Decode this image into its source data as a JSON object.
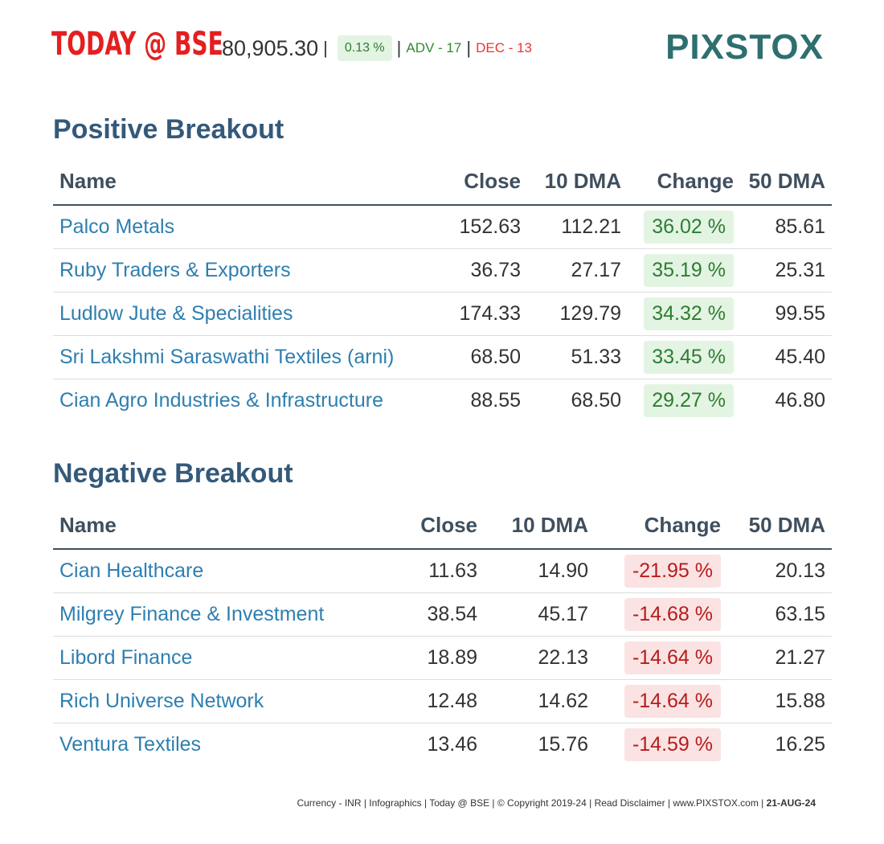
{
  "header": {
    "brand": "TODAY @ BSE",
    "index_value": "80,905.30",
    "change_pct": "0.13 %",
    "adv": "ADV - 17",
    "dec": "DEC - 13",
    "logo": "PIXSTOX"
  },
  "positive": {
    "title": "Positive Breakout",
    "columns": [
      "Name",
      "Close",
      "10 DMA",
      "Change",
      "50 DMA"
    ],
    "rows": [
      {
        "name": "Palco Metals",
        "close": "152.63",
        "dma10": "112.21",
        "change": "36.02 %",
        "dma50": "85.61"
      },
      {
        "name": "Ruby Traders & Exporters",
        "close": "36.73",
        "dma10": "27.17",
        "change": "35.19 %",
        "dma50": "25.31"
      },
      {
        "name": "Ludlow Jute & Specialities",
        "close": "174.33",
        "dma10": "129.79",
        "change": "34.32 %",
        "dma50": "99.55"
      },
      {
        "name": "Sri Lakshmi Saraswathi Textiles (arni)",
        "close": "68.50",
        "dma10": "51.33",
        "change": "33.45 %",
        "dma50": "45.40"
      },
      {
        "name": "Cian Agro Industries & Infrastructure",
        "close": "88.55",
        "dma10": "68.50",
        "change": "29.27 %",
        "dma50": "46.80"
      }
    ]
  },
  "negative": {
    "title": "Negative Breakout",
    "columns": [
      "Name",
      "Close",
      "10 DMA",
      "Change",
      "50 DMA"
    ],
    "rows": [
      {
        "name": "Cian Healthcare",
        "close": "11.63",
        "dma10": "14.90",
        "change": "-21.95 %",
        "dma50": "20.13"
      },
      {
        "name": "Milgrey Finance & Investment",
        "close": "38.54",
        "dma10": "45.17",
        "change": "-14.68 %",
        "dma50": "63.15"
      },
      {
        "name": "Libord Finance",
        "close": "18.89",
        "dma10": "22.13",
        "change": "-14.64 %",
        "dma50": "21.27"
      },
      {
        "name": "Rich Universe Network",
        "close": "12.48",
        "dma10": "14.62",
        "change": "-14.64 %",
        "dma50": "15.88"
      },
      {
        "name": "Ventura Textiles",
        "close": "13.46",
        "dma10": "15.76",
        "change": "-14.59 %",
        "dma50": "16.25"
      }
    ]
  },
  "footer": {
    "text": "Currency - INR | Infographics | Today @ BSE | © Copyright 2019-24 | Read Disclaimer | www.PIXSTOX.com | ",
    "date": "21-AUG-24"
  },
  "colors": {
    "brand_red": "#e41f1f",
    "title_blue": "#34597a",
    "link_blue": "#2e7fb0",
    "positive_green": "#2e7d32",
    "negative_red": "#b71c1c",
    "logo_teal": "#2e6f6f"
  }
}
